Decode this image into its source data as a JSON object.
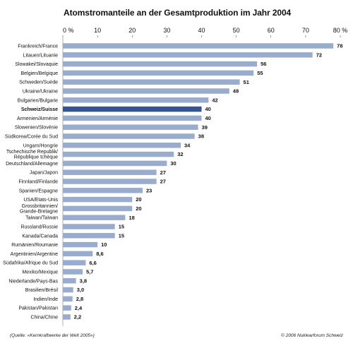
{
  "chart_data": {
    "type": "bar",
    "orientation": "horizontal",
    "title": "Atomstromanteile an der Gesamtproduktion im Jahr 2004",
    "x_ticks": [
      "0 %",
      "10",
      "20",
      "30",
      "40",
      "50",
      "60",
      "70",
      "80 %"
    ],
    "xlim": [
      0,
      80
    ],
    "grid": false,
    "colors": {
      "bar": "#9aaccd",
      "highlight": "#34558f"
    },
    "highlight_category": "Schweiz/Suisse",
    "categories": [
      "Frankreich/France",
      "Litauen/Lituanie",
      "Slowakei/Slovaquie",
      "Belgien/Belgique",
      "Schweden/Suède",
      "Ukraine/Ukraine",
      "Bulgarien/Bulgarie",
      "Schweiz/Suisse",
      "Armenien/Arménie",
      "Slowenien/Slovénie",
      "Südkorea/Corée du Sud",
      "Ungarn/Hongrie",
      "Tschechische Republik/\nRépublique tchèque",
      "Deutschland/Allemagne",
      "Japan/Japon",
      "Finnland/Finlande",
      "Spanien/Espagne",
      "USA/Etats-Unis",
      "Grossbritannien/\nGrande-Bretagne",
      "Taiwan/Taïwan",
      "Russland/Russie",
      "Kanada/Canada",
      "Rumänien/Roumanie",
      "Argentinien/Argentine",
      "Südafrika/Afrique du Sud",
      "Mexiko/Mexique",
      "Niederlande/Pays-Bas",
      "Brasilien/Brésil",
      "Indien/Inde",
      "Pakistan/Pakistan",
      "China/Chine"
    ],
    "values": [
      78,
      72,
      56,
      55,
      51,
      48,
      42,
      40,
      40,
      39,
      38,
      34,
      32,
      30,
      27,
      27,
      23,
      20,
      20,
      18,
      15,
      15,
      10,
      8.6,
      6.6,
      5.7,
      3.8,
      3.0,
      2.8,
      2.4,
      2.2
    ],
    "value_labels": [
      "78",
      "72",
      "56",
      "55",
      "51",
      "48",
      "42",
      "40",
      "40",
      "39",
      "38",
      "34",
      "32",
      "30",
      "27",
      "27",
      "23",
      "20",
      "20",
      "18",
      "15",
      "15",
      "10",
      "8,6",
      "6,6",
      "5,7",
      "3,8",
      "3,0",
      "2,8",
      "2,4",
      "2,2"
    ]
  },
  "footer": {
    "source": "(Quelle: «Kernkraftwerke der Welt 2005»)",
    "copyright": "© 2006 Nuklearforum Schweiz"
  }
}
